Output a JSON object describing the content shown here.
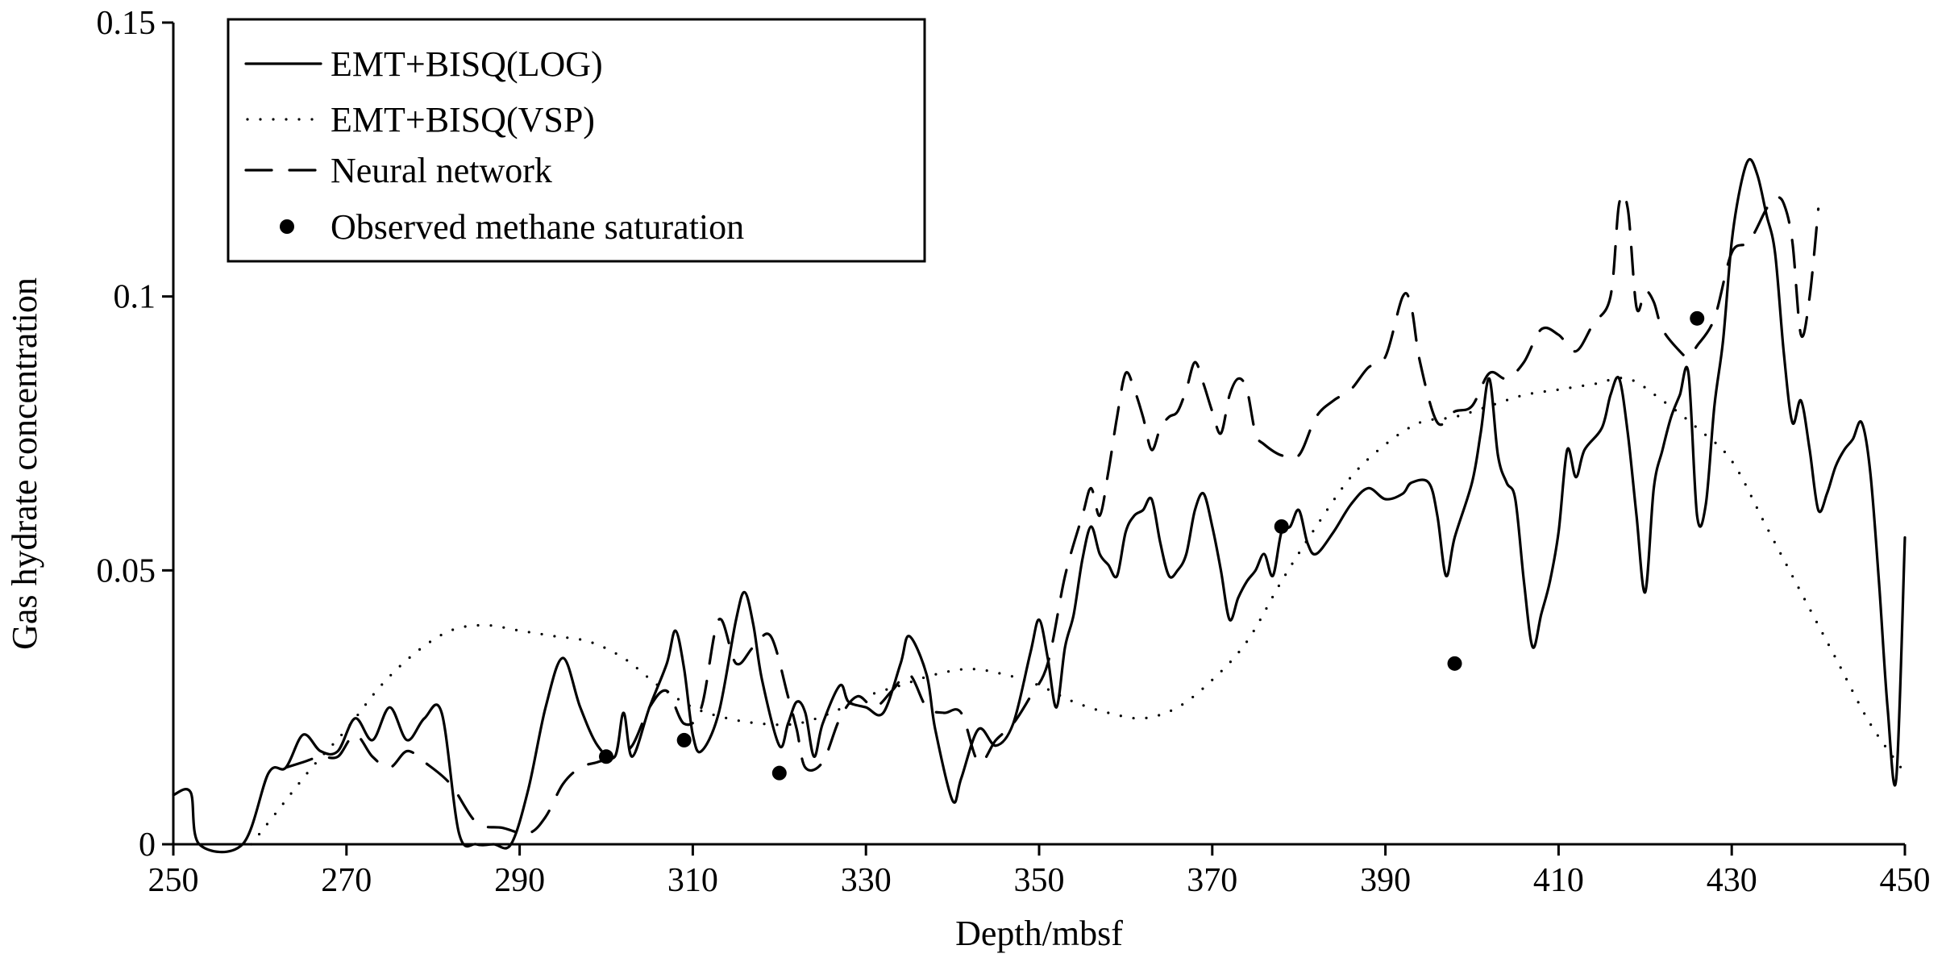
{
  "chart_data": {
    "type": "line",
    "title": "",
    "xlabel": "Depth/mbsf",
    "ylabel": "Gas  hydrate concentration",
    "xlim": [
      250,
      450
    ],
    "ylim": [
      0,
      0.15
    ],
    "xticks": [
      250,
      270,
      290,
      310,
      330,
      350,
      370,
      390,
      410,
      430,
      450
    ],
    "yticks": [
      0,
      0.05,
      0.1,
      0.15
    ],
    "ytick_labels": [
      "0",
      "0.05",
      "0.1",
      "0.15"
    ],
    "grid": false,
    "legend_position": "top-left",
    "series": [
      {
        "name": "EMT+BISQ(LOG)",
        "style": "solid",
        "points": [
          [
            250,
            0.009
          ],
          [
            252,
            0.0095
          ],
          [
            253,
            0
          ],
          [
            258,
            0
          ],
          [
            261,
            0.013
          ],
          [
            263,
            0.014
          ],
          [
            265,
            0.02
          ],
          [
            267,
            0.017
          ],
          [
            269,
            0.017
          ],
          [
            271,
            0.023
          ],
          [
            273,
            0.019
          ],
          [
            275,
            0.025
          ],
          [
            277,
            0.019
          ],
          [
            279,
            0.023
          ],
          [
            281,
            0.024
          ],
          [
            283,
            0.002
          ],
          [
            285,
            0
          ],
          [
            287,
            0
          ],
          [
            289,
            0
          ],
          [
            291,
            0.01
          ],
          [
            293,
            0.025
          ],
          [
            295,
            0.034
          ],
          [
            297,
            0.025
          ],
          [
            299,
            0.018
          ],
          [
            301,
            0.016
          ],
          [
            302,
            0.024
          ],
          [
            303,
            0.016
          ],
          [
            305,
            0.025
          ],
          [
            307,
            0.033
          ],
          [
            308,
            0.039
          ],
          [
            309,
            0.032
          ],
          [
            310,
            0.02
          ],
          [
            311,
            0.017
          ],
          [
            313,
            0.024
          ],
          [
            315,
            0.041
          ],
          [
            316,
            0.046
          ],
          [
            317,
            0.04
          ],
          [
            318,
            0.03
          ],
          [
            320,
            0.018
          ],
          [
            321,
            0.022
          ],
          [
            322,
            0.026
          ],
          [
            323,
            0.024
          ],
          [
            324,
            0.016
          ],
          [
            325,
            0.022
          ],
          [
            327,
            0.029
          ],
          [
            328,
            0.026
          ],
          [
            330,
            0.025
          ],
          [
            332,
            0.024
          ],
          [
            334,
            0.033
          ],
          [
            335,
            0.038
          ],
          [
            337,
            0.031
          ],
          [
            338,
            0.021
          ],
          [
            340,
            0.008
          ],
          [
            341,
            0.012
          ],
          [
            343,
            0.021
          ],
          [
            345,
            0.018
          ],
          [
            347,
            0.022
          ],
          [
            349,
            0.035
          ],
          [
            350,
            0.041
          ],
          [
            351,
            0.034
          ],
          [
            352,
            0.025
          ],
          [
            353,
            0.036
          ],
          [
            354,
            0.042
          ],
          [
            355,
            0.052
          ],
          [
            356,
            0.058
          ],
          [
            357,
            0.053
          ],
          [
            358,
            0.051
          ],
          [
            359,
            0.049
          ],
          [
            360,
            0.057
          ],
          [
            361,
            0.06
          ],
          [
            362,
            0.061
          ],
          [
            363,
            0.063
          ],
          [
            364,
            0.055
          ],
          [
            365,
            0.049
          ],
          [
            366,
            0.05
          ],
          [
            367,
            0.053
          ],
          [
            368,
            0.061
          ],
          [
            369,
            0.064
          ],
          [
            370,
            0.058
          ],
          [
            371,
            0.05
          ],
          [
            372,
            0.041
          ],
          [
            373,
            0.045
          ],
          [
            374,
            0.048
          ],
          [
            375,
            0.05
          ],
          [
            376,
            0.053
          ],
          [
            377,
            0.049
          ],
          [
            378,
            0.057
          ],
          [
            379,
            0.058
          ],
          [
            380,
            0.061
          ],
          [
            381,
            0.055
          ],
          [
            382,
            0.053
          ],
          [
            384,
            0.057
          ],
          [
            386,
            0.062
          ],
          [
            388,
            0.065
          ],
          [
            390,
            0.063
          ],
          [
            392,
            0.064
          ],
          [
            393,
            0.066
          ],
          [
            395,
            0.066
          ],
          [
            396,
            0.06
          ],
          [
            397,
            0.049
          ],
          [
            398,
            0.056
          ],
          [
            400,
            0.066
          ],
          [
            401,
            0.075
          ],
          [
            402,
            0.085
          ],
          [
            403,
            0.071
          ],
          [
            404,
            0.066
          ],
          [
            405,
            0.063
          ],
          [
            406,
            0.048
          ],
          [
            407,
            0.036
          ],
          [
            408,
            0.042
          ],
          [
            409,
            0.048
          ],
          [
            410,
            0.057
          ],
          [
            411,
            0.072
          ],
          [
            412,
            0.067
          ],
          [
            413,
            0.072
          ],
          [
            415,
            0.076
          ],
          [
            416,
            0.082
          ],
          [
            417,
            0.085
          ],
          [
            418,
            0.075
          ],
          [
            419,
            0.06
          ],
          [
            420,
            0.046
          ],
          [
            421,
            0.065
          ],
          [
            422,
            0.072
          ],
          [
            423,
            0.078
          ],
          [
            424,
            0.082
          ],
          [
            425,
            0.086
          ],
          [
            426,
            0.06
          ],
          [
            427,
            0.062
          ],
          [
            428,
            0.08
          ],
          [
            429,
            0.092
          ],
          [
            430,
            0.11
          ],
          [
            431,
            0.12
          ],
          [
            432,
            0.125
          ],
          [
            433,
            0.122
          ],
          [
            434,
            0.115
          ],
          [
            435,
            0.108
          ],
          [
            436,
            0.09
          ],
          [
            437,
            0.077
          ],
          [
            438,
            0.081
          ],
          [
            439,
            0.072
          ],
          [
            440,
            0.061
          ],
          [
            441,
            0.064
          ],
          [
            442,
            0.069
          ],
          [
            443,
            0.072
          ],
          [
            444,
            0.074
          ],
          [
            445,
            0.077
          ],
          [
            446,
            0.068
          ],
          [
            447,
            0.048
          ],
          [
            448,
            0.025
          ],
          [
            449,
            0.012
          ],
          [
            450,
            0.056
          ]
        ]
      },
      {
        "name": "EMT+BISQ(VSP)",
        "style": "dotted",
        "points": [
          [
            259,
            0
          ],
          [
            262,
            0.006
          ],
          [
            266,
            0.014
          ],
          [
            270,
            0.021
          ],
          [
            274,
            0.029
          ],
          [
            278,
            0.035
          ],
          [
            282,
            0.039
          ],
          [
            286,
            0.04
          ],
          [
            290,
            0.039
          ],
          [
            294,
            0.038
          ],
          [
            298,
            0.037
          ],
          [
            302,
            0.034
          ],
          [
            306,
            0.029
          ],
          [
            310,
            0.025
          ],
          [
            314,
            0.023
          ],
          [
            318,
            0.022
          ],
          [
            322,
            0.022
          ],
          [
            326,
            0.024
          ],
          [
            330,
            0.027
          ],
          [
            334,
            0.029
          ],
          [
            338,
            0.031
          ],
          [
            342,
            0.032
          ],
          [
            346,
            0.031
          ],
          [
            350,
            0.029
          ],
          [
            354,
            0.026
          ],
          [
            358,
            0.024
          ],
          [
            362,
            0.023
          ],
          [
            366,
            0.025
          ],
          [
            370,
            0.03
          ],
          [
            374,
            0.037
          ],
          [
            378,
            0.048
          ],
          [
            382,
            0.058
          ],
          [
            386,
            0.067
          ],
          [
            390,
            0.073
          ],
          [
            394,
            0.077
          ],
          [
            398,
            0.078
          ],
          [
            402,
            0.08
          ],
          [
            406,
            0.082
          ],
          [
            410,
            0.083
          ],
          [
            414,
            0.084
          ],
          [
            418,
            0.085
          ],
          [
            422,
            0.081
          ],
          [
            426,
            0.076
          ],
          [
            430,
            0.07
          ],
          [
            434,
            0.058
          ],
          [
            438,
            0.046
          ],
          [
            442,
            0.034
          ],
          [
            446,
            0.022
          ],
          [
            450,
            0.013
          ]
        ]
      },
      {
        "name": "Neural network",
        "style": "dashed",
        "points": [
          [
            263,
            0.014
          ],
          [
            265,
            0.015
          ],
          [
            267,
            0.016
          ],
          [
            269,
            0.016
          ],
          [
            271,
            0.02
          ],
          [
            273,
            0.016
          ],
          [
            275,
            0.014
          ],
          [
            277,
            0.017
          ],
          [
            279,
            0.015
          ],
          [
            282,
            0.011
          ],
          [
            285,
            0.004
          ],
          [
            288,
            0.003
          ],
          [
            291,
            0.002
          ],
          [
            293,
            0.005
          ],
          [
            295,
            0.011
          ],
          [
            297,
            0.014
          ],
          [
            299,
            0.015
          ],
          [
            301,
            0.016
          ],
          [
            303,
            0.018
          ],
          [
            305,
            0.025
          ],
          [
            307,
            0.028
          ],
          [
            309,
            0.022
          ],
          [
            311,
            0.025
          ],
          [
            313,
            0.041
          ],
          [
            315,
            0.033
          ],
          [
            317,
            0.036
          ],
          [
            319,
            0.038
          ],
          [
            321,
            0.027
          ],
          [
            322,
            0.021
          ],
          [
            323,
            0.014
          ],
          [
            325,
            0.015
          ],
          [
            327,
            0.023
          ],
          [
            329,
            0.027
          ],
          [
            331,
            0.025
          ],
          [
            333,
            0.028
          ],
          [
            335,
            0.031
          ],
          [
            337,
            0.025
          ],
          [
            339,
            0.024
          ],
          [
            341,
            0.024
          ],
          [
            343,
            0.015
          ],
          [
            345,
            0.019
          ],
          [
            347,
            0.022
          ],
          [
            349,
            0.027
          ],
          [
            351,
            0.033
          ],
          [
            353,
            0.049
          ],
          [
            355,
            0.06
          ],
          [
            356,
            0.065
          ],
          [
            357,
            0.06
          ],
          [
            358,
            0.068
          ],
          [
            359,
            0.078
          ],
          [
            360,
            0.086
          ],
          [
            361,
            0.083
          ],
          [
            362,
            0.078
          ],
          [
            363,
            0.072
          ],
          [
            364,
            0.076
          ],
          [
            365,
            0.078
          ],
          [
            366,
            0.079
          ],
          [
            367,
            0.083
          ],
          [
            368,
            0.088
          ],
          [
            369,
            0.084
          ],
          [
            370,
            0.079
          ],
          [
            371,
            0.075
          ],
          [
            372,
            0.082
          ],
          [
            373,
            0.085
          ],
          [
            374,
            0.083
          ],
          [
            375,
            0.075
          ],
          [
            376,
            0.073
          ],
          [
            378,
            0.071
          ],
          [
            380,
            0.071
          ],
          [
            382,
            0.078
          ],
          [
            384,
            0.081
          ],
          [
            386,
            0.083
          ],
          [
            388,
            0.087
          ],
          [
            390,
            0.089
          ],
          [
            392,
            0.1
          ],
          [
            393,
            0.098
          ],
          [
            394,
            0.088
          ],
          [
            396,
            0.077
          ],
          [
            398,
            0.079
          ],
          [
            400,
            0.08
          ],
          [
            402,
            0.086
          ],
          [
            404,
            0.085
          ],
          [
            406,
            0.088
          ],
          [
            408,
            0.094
          ],
          [
            410,
            0.093
          ],
          [
            412,
            0.09
          ],
          [
            414,
            0.095
          ],
          [
            416,
            0.1
          ],
          [
            417,
            0.117
          ],
          [
            418,
            0.116
          ],
          [
            419,
            0.098
          ],
          [
            420,
            0.101
          ],
          [
            421,
            0.099
          ],
          [
            422,
            0.094
          ],
          [
            424,
            0.09
          ],
          [
            425,
            0.089
          ],
          [
            426,
            0.091
          ],
          [
            428,
            0.096
          ],
          [
            430,
            0.108
          ],
          [
            432,
            0.11
          ],
          [
            434,
            0.116
          ],
          [
            435,
            0.118
          ],
          [
            436,
            0.117
          ],
          [
            437,
            0.11
          ],
          [
            438,
            0.093
          ],
          [
            439,
            0.1
          ],
          [
            440,
            0.116
          ]
        ]
      },
      {
        "name": "Observed methane saturation",
        "style": "markers",
        "points": [
          [
            300,
            0.016
          ],
          [
            309,
            0.019
          ],
          [
            320,
            0.013
          ],
          [
            378,
            0.058
          ],
          [
            398,
            0.033
          ],
          [
            426,
            0.096
          ]
        ]
      }
    ]
  }
}
